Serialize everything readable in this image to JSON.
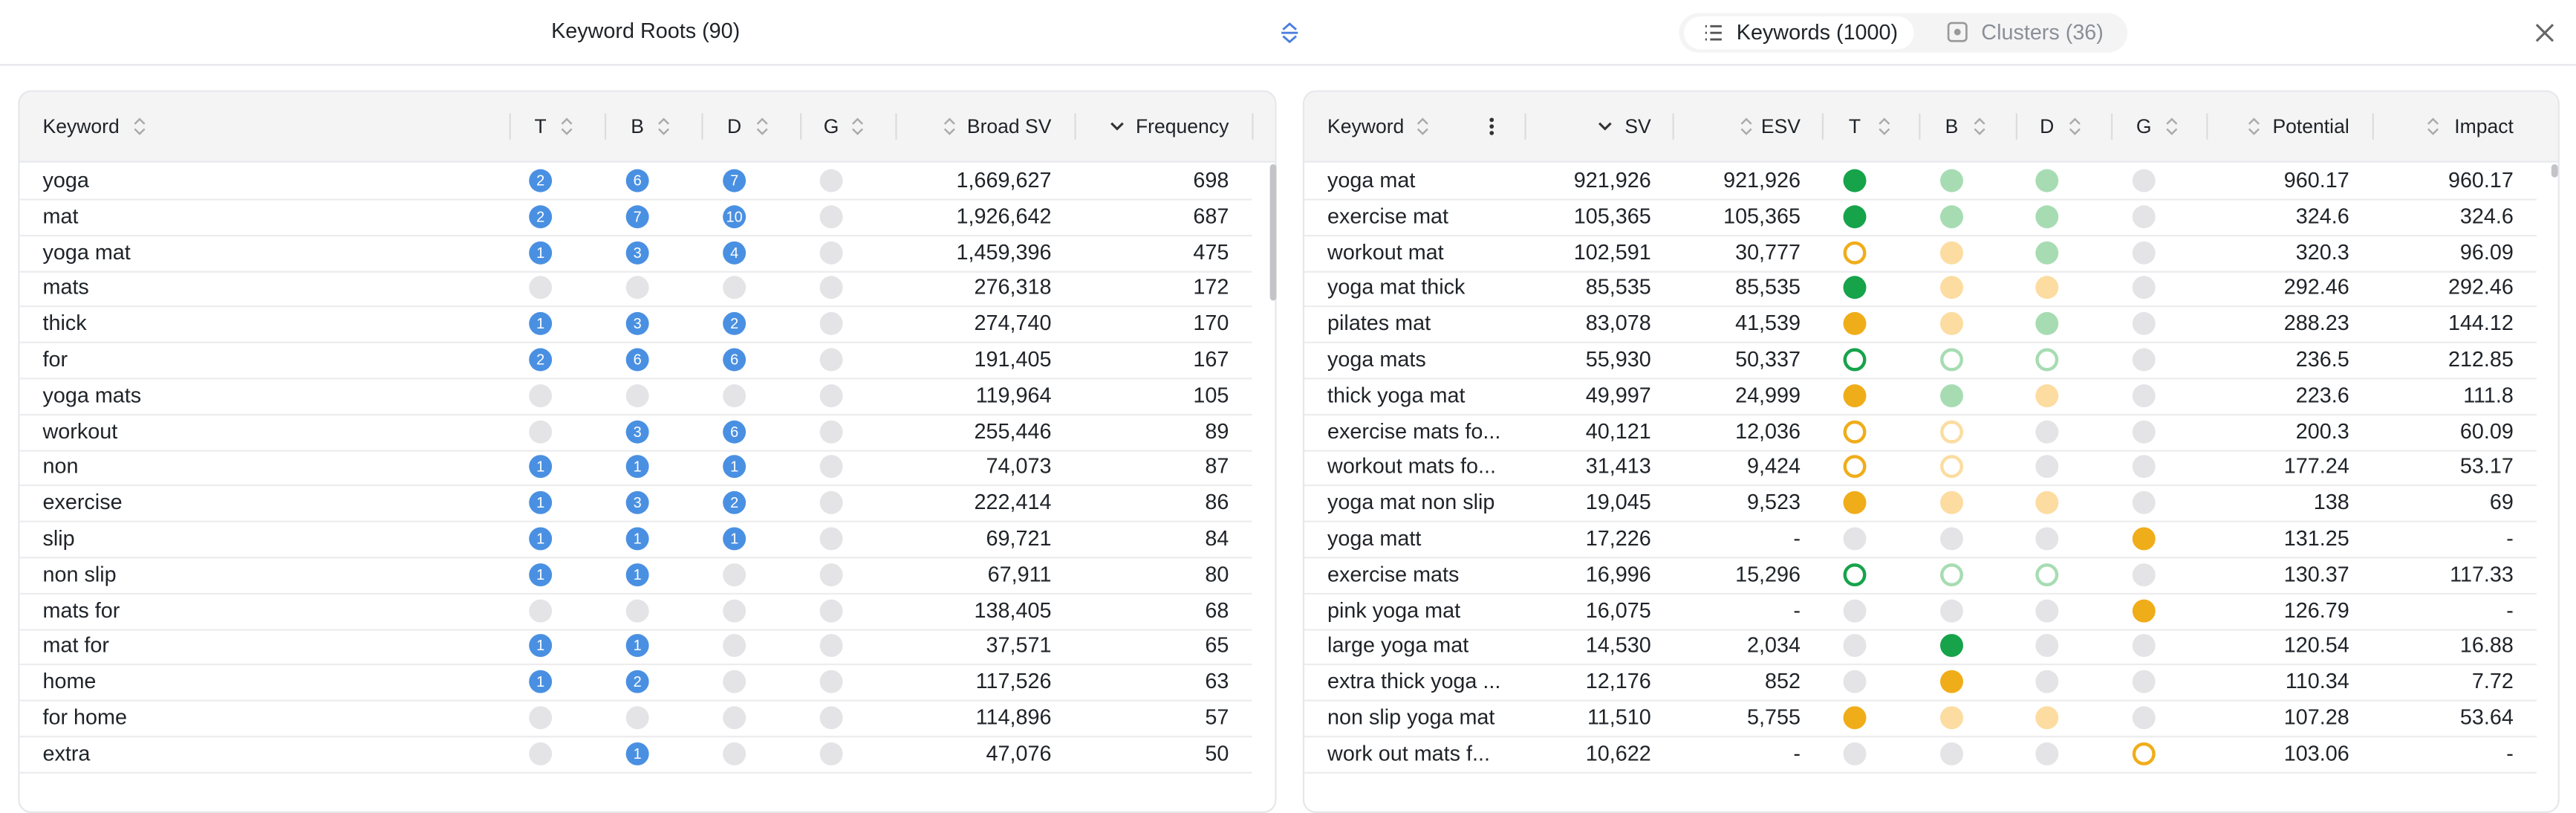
{
  "header": {
    "title": "Keyword Roots (90)",
    "tabs": [
      "Keywords (1000)",
      "Clusters (36)"
    ]
  },
  "left_table": {
    "columns": [
      "Keyword",
      "T",
      "B",
      "D",
      "G",
      "Broad SV",
      "Frequency"
    ],
    "rows": [
      [
        "yoga",
        2,
        6,
        7,
        "1,669,627",
        "698"
      ],
      [
        "mat",
        2,
        7,
        10,
        "1,926,642",
        "687"
      ],
      [
        "yoga mat",
        1,
        3,
        4,
        "1,459,396",
        "475"
      ],
      [
        "mats",
        null,
        null,
        null,
        "276,318",
        "172"
      ],
      [
        "thick",
        1,
        3,
        2,
        "274,740",
        "170"
      ],
      [
        "for",
        2,
        6,
        6,
        "191,405",
        "167"
      ],
      [
        "yoga mats",
        null,
        null,
        null,
        "119,964",
        "105"
      ],
      [
        "workout",
        null,
        3,
        6,
        "255,446",
        "89"
      ],
      [
        "non",
        1,
        1,
        1,
        "74,073",
        "87"
      ],
      [
        "exercise",
        1,
        3,
        2,
        "222,414",
        "86"
      ],
      [
        "slip",
        1,
        1,
        1,
        "69,721",
        "84"
      ],
      [
        "non slip",
        1,
        1,
        null,
        "67,911",
        "80"
      ],
      [
        "mats for",
        null,
        null,
        null,
        "138,405",
        "68"
      ],
      [
        "mat for",
        1,
        1,
        null,
        "37,571",
        "65"
      ],
      [
        "home",
        1,
        2,
        null,
        "117,526",
        "63"
      ],
      [
        "for home",
        null,
        null,
        null,
        "114,896",
        "57"
      ],
      [
        "extra",
        null,
        1,
        null,
        "47,076",
        "50"
      ]
    ]
  },
  "right_table": {
    "columns": [
      "Keyword",
      "SV",
      "ESV",
      "T",
      "B",
      "D",
      "G",
      "Potential",
      "Impact"
    ],
    "rows": [
      [
        "yoga mat",
        "921,926",
        "921,926",
        "960.17",
        "960.17"
      ],
      [
        "exercise mat",
        "105,365",
        "105,365",
        "324.6",
        "324.6"
      ],
      [
        "workout mat",
        "102,591",
        "30,777",
        "320.3",
        "96.09"
      ],
      [
        "yoga mat thick",
        "85,535",
        "85,535",
        "292.46",
        "292.46"
      ],
      [
        "pilates mat",
        "83,078",
        "41,539",
        "288.23",
        "144.12"
      ],
      [
        "yoga mats",
        "55,930",
        "50,337",
        "236.5",
        "212.85"
      ],
      [
        "thick yoga mat",
        "49,997",
        "24,999",
        "223.6",
        "111.8"
      ],
      [
        "exercise mats fo...",
        "40,121",
        "12,036",
        "200.3",
        "60.09"
      ],
      [
        "workout mats fo...",
        "31,413",
        "9,424",
        "177.24",
        "53.17"
      ],
      [
        "yoga mat non slip",
        "19,045",
        "9,523",
        "138",
        "69"
      ],
      [
        "yoga matt",
        "17,226",
        "-",
        "131.25",
        "-"
      ],
      [
        "exercise mats",
        "16,996",
        "15,296",
        "130.37",
        "117.33"
      ],
      [
        "pink yoga mat",
        "16,075",
        "-",
        "126.79",
        "-"
      ],
      [
        "large yoga mat",
        "14,530",
        "2,034",
        "120.54",
        "16.88"
      ],
      [
        "extra thick yoga ...",
        "12,176",
        "852",
        "110.34",
        "7.72"
      ],
      [
        "non slip yoga mat",
        "11,510",
        "5,755",
        "107.28",
        "53.64"
      ],
      [
        "work out mats f...",
        "10,622",
        "-",
        "103.06",
        "-"
      ]
    ]
  }
}
